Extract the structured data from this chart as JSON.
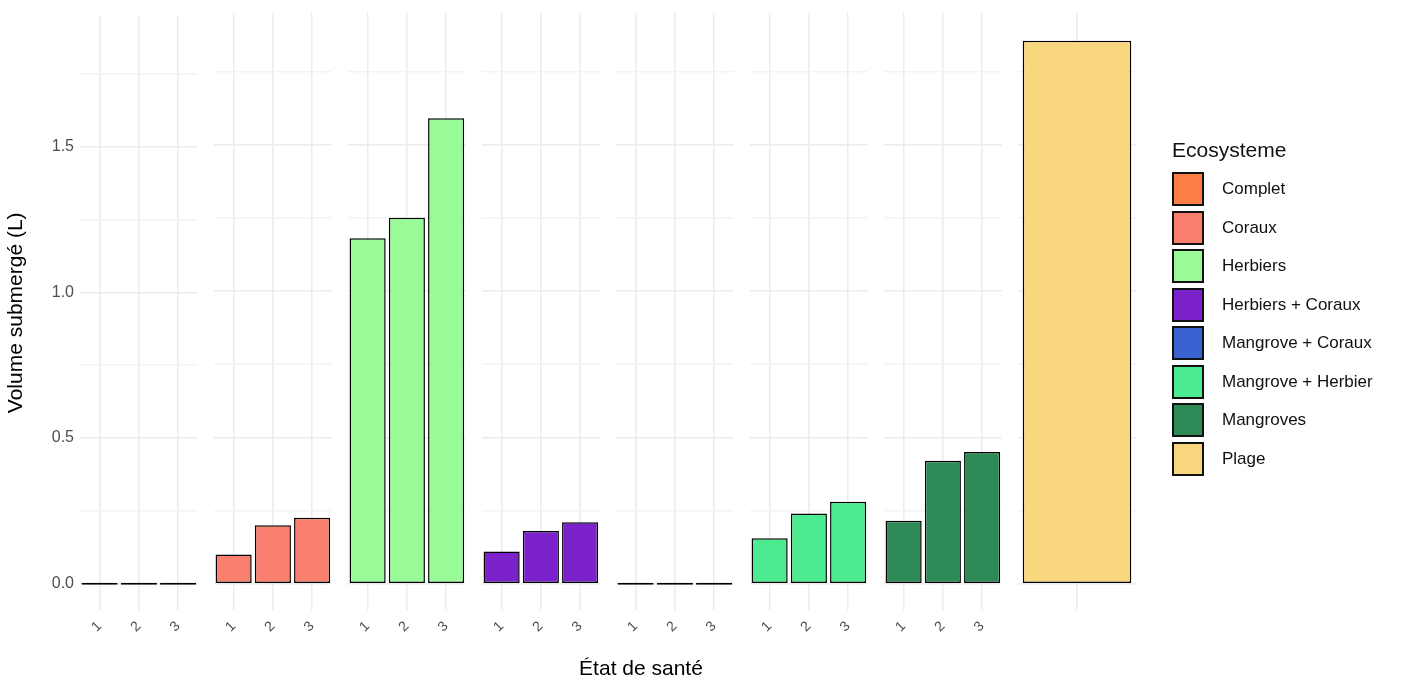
{
  "chart_data": [
    {
      "type": "bar",
      "categories": [
        "1",
        "2",
        "3"
      ],
      "series": [
        {
          "name": "Complet",
          "color": "#fc8046",
          "values": [
            0,
            0,
            0
          ]
        }
      ],
      "ylim": [
        -0.09,
        1.95
      ],
      "yticks": [
        {
          "value": 0,
          "label": "0.0"
        },
        {
          "value": 0.25,
          "label": null
        },
        0.5,
        {
          "value": 0.75,
          "label": null
        },
        {
          "value": 1,
          "label": "1.0"
        },
        {
          "value": 1.25,
          "label": null
        },
        1.5,
        {
          "value": 1.75,
          "label": null
        }
      ],
      "grid": true,
      "ylabel": "Volume submergé (L)",
      "legend": "right",
      "legend_title": "Ecosysteme"
    },
    {
      "type": "bar",
      "categories": [
        "1",
        "2",
        "3"
      ],
      "series": [
        {
          "name": "Coraux",
          "color": "#fa7f6e",
          "values": [
            0.1,
            0.2,
            0.225
          ]
        }
      ],
      "ylim": [
        -0.09,
        1.95
      ],
      "yticks": [
        0,
        {
          "value": 0.25,
          "label": null
        },
        0.5,
        {
          "value": 0.75,
          "label": null
        },
        1.0,
        {
          "value": 1.25,
          "label": null
        },
        1.5,
        {
          "value": 1.75,
          "label": null
        }
      ],
      "grid": true,
      "tick_labels": "x",
      "legend": "right"
    },
    {
      "type": "bar",
      "categories": [
        "1",
        "2",
        "3"
      ],
      "series": [
        {
          "name": "Herbiers",
          "color": "#98fb98",
          "values": [
            1.18,
            1.25,
            1.59
          ]
        }
      ],
      "ylim": [
        -0.09,
        1.95
      ],
      "yticks": [
        0,
        {
          "value": 0.25,
          "label": null
        },
        0.5,
        {
          "value": 0.75,
          "label": null
        },
        1.0,
        {
          "value": 1.25,
          "label": null
        },
        1.5,
        {
          "value": 1.75,
          "label": null
        }
      ],
      "grid": true,
      "tick_labels": "x",
      "legend": "right"
    },
    {
      "type": "bar",
      "categories": [
        "1",
        "2",
        "3"
      ],
      "series": [
        {
          "name": "Herbiers + Coraux",
          "color": "#7b22cc",
          "values": [
            0.11,
            0.18,
            0.21
          ]
        }
      ],
      "ylim": [
        -0.09,
        1.95
      ],
      "yticks": [
        0,
        {
          "value": 0.25,
          "label": null
        },
        0.5,
        {
          "value": 0.75,
          "label": null
        },
        1.0,
        {
          "value": 1.25,
          "label": null
        },
        1.5,
        {
          "value": 1.75,
          "label": null
        }
      ],
      "grid": true,
      "tick_labels": "x",
      "legend": "right"
    },
    {
      "type": "bar",
      "categories": [
        "1",
        "2",
        "3"
      ],
      "series": [
        {
          "name": "Mangrove + Coraux",
          "color": "#3a62d1",
          "values": [
            0,
            0,
            0
          ]
        }
      ],
      "ylim": [
        -0.09,
        1.95
      ],
      "yticks": [
        0,
        {
          "value": 0.25,
          "label": null
        },
        0.5,
        {
          "value": 0.75,
          "label": null
        },
        1.0,
        {
          "value": 1.25,
          "label": null
        },
        1.5,
        {
          "value": 1.75,
          "label": null
        }
      ],
      "grid": true,
      "tick_labels": "x",
      "legend": "right",
      "xlabel": "État de santé"
    },
    {
      "type": "bar",
      "categories": [
        "1",
        "2",
        "3"
      ],
      "series": [
        {
          "name": "Mangrove + Herbier",
          "color": "#4ceb8f",
          "values": [
            0.155,
            0.24,
            0.28
          ]
        }
      ],
      "ylim": [
        -0.09,
        1.95
      ],
      "yticks": [
        0,
        {
          "value": 0.25,
          "label": null
        },
        0.5,
        {
          "value": 0.75,
          "label": null
        },
        1.0,
        {
          "value": 1.25,
          "label": null
        },
        1.5,
        {
          "value": 1.75,
          "label": null
        }
      ],
      "grid": true,
      "tick_labels": "x",
      "legend": "right"
    },
    {
      "type": "bar",
      "categories": [
        "1",
        "2",
        "3"
      ],
      "series": [
        {
          "name": "Mangroves",
          "color": "#2e8b57",
          "values": [
            0.215,
            0.42,
            0.45
          ]
        }
      ],
      "ylim": [
        -0.09,
        1.95
      ],
      "yticks": [
        0,
        {
          "value": 0.25,
          "label": null
        },
        0.5,
        {
          "value": 0.75,
          "label": null
        },
        1.0,
        {
          "value": 1.25,
          "label": null
        },
        1.5,
        {
          "value": 1.75,
          "label": null
        }
      ],
      "grid": true,
      "tick_labels": "x",
      "legend": "right"
    },
    {
      "type": "bar",
      "categories": [
        null
      ],
      "series": [
        {
          "name": "Plage",
          "color": "#f9d77e",
          "values": [
            1.855
          ]
        }
      ],
      "ylim": [
        -0.09,
        1.95
      ],
      "yticks": [
        0,
        {
          "value": 0.25,
          "label": null
        },
        0.5,
        {
          "value": 0.75,
          "label": null
        },
        1.0,
        {
          "value": 1.25,
          "label": null
        },
        1.5,
        {
          "value": 1.75,
          "label": null
        }
      ],
      "grid": true,
      "tick_labels": false,
      "legend": "right"
    }
  ]
}
